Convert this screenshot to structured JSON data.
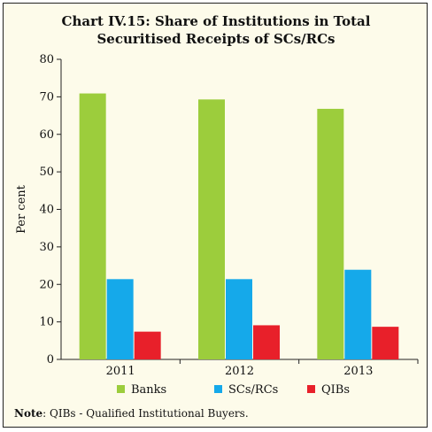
{
  "chart_data": {
    "type": "bar",
    "title_line1": "Chart IV.15: Share of Institutions in Total",
    "title_line2": "Securitised Receipts of SCs/RCs",
    "ylabel": "Per cent",
    "xlabel": "",
    "ylim": [
      0,
      80
    ],
    "yticks": [
      0,
      10,
      20,
      30,
      40,
      50,
      60,
      70,
      80
    ],
    "categories": [
      "2011",
      "2012",
      "2013"
    ],
    "series": [
      {
        "name": "Banks",
        "color": "#9ccd3c",
        "values": [
          70.9,
          69.3,
          66.8
        ]
      },
      {
        "name": "SCs/RCs",
        "color": "#15a9ea",
        "values": [
          21.4,
          21.4,
          23.9
        ]
      },
      {
        "name": "QIBs",
        "color": "#e8202a",
        "values": [
          7.4,
          9.1,
          8.7
        ]
      }
    ],
    "legend_position": "bottom",
    "grid": false
  },
  "note": {
    "label": "Note",
    "text": ": QIBs - Qualified Institutional Buyers."
  }
}
